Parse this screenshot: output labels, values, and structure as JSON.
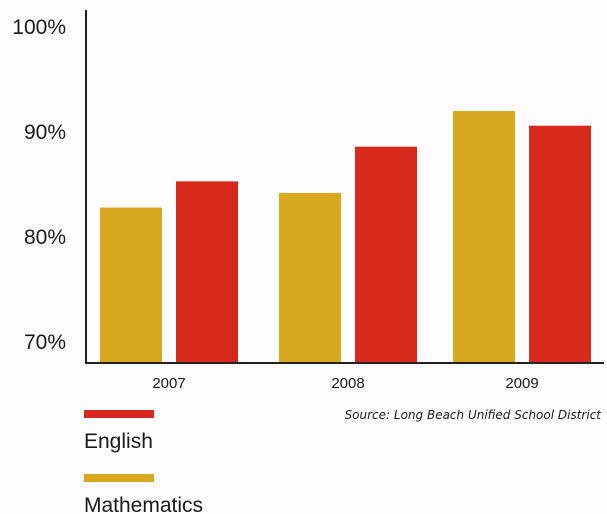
{
  "chart_data": {
    "type": "bar",
    "categories": [
      "2007",
      "2008",
      "2009"
    ],
    "series": [
      {
        "name": "Mathematics",
        "values": [
          82.8,
          84.2,
          92.0
        ],
        "color": "#d8a81e"
      },
      {
        "name": "English",
        "values": [
          85.3,
          88.6,
          90.6
        ],
        "color": "#d8291d"
      }
    ],
    "ylim": [
      68,
      100
    ],
    "yticks": [
      {
        "value": 100,
        "label": "100%"
      },
      {
        "value": 90,
        "label": "90%"
      },
      {
        "value": 80,
        "label": "80%"
      },
      {
        "value": 70,
        "label": "70%"
      }
    ],
    "grid": false,
    "legend_placement": "bottom-left",
    "legend_order": [
      "English",
      "Mathematics"
    ]
  },
  "source_note": "Source: Long Beach Unified School District"
}
